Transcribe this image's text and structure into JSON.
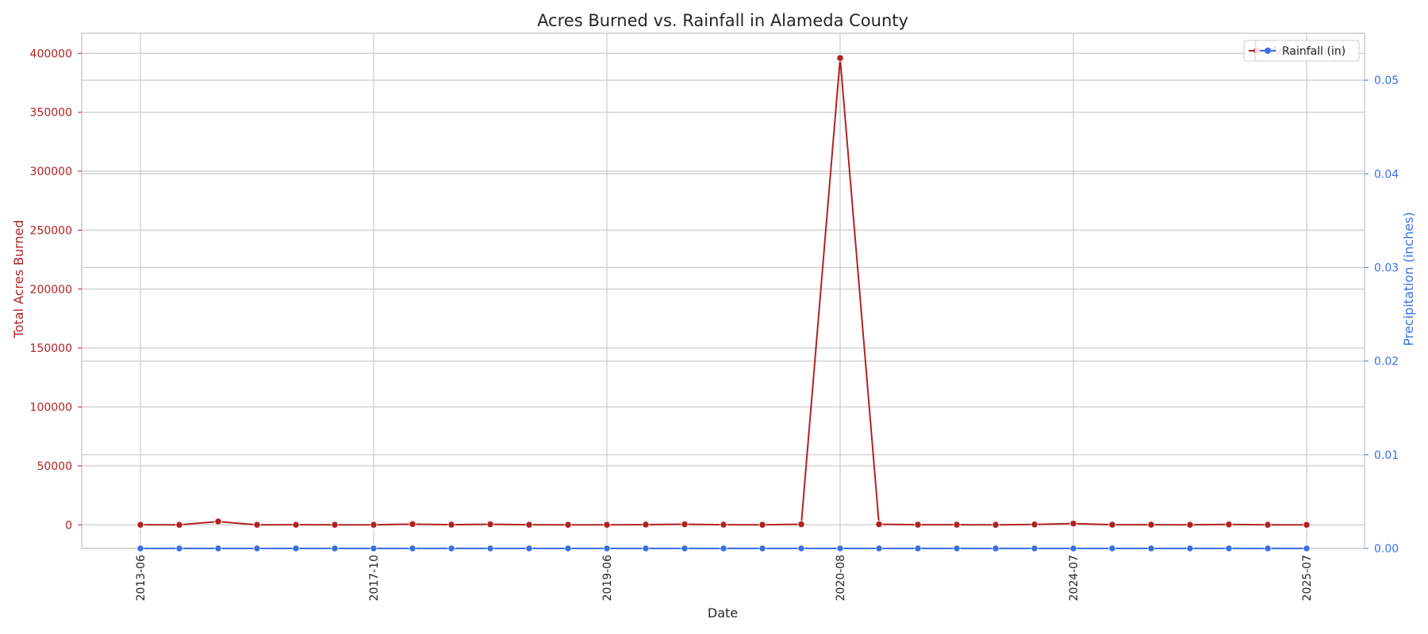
{
  "chart_data": {
    "type": "line",
    "title": "Acres Burned vs. Rainfall in Alameda County",
    "xlabel": "Date",
    "ylabel_left": "Total Acres Burned",
    "ylabel_right": "Precipitation (inches)",
    "grid": true,
    "legend_placement": "top-right",
    "x_tick_labels": [
      "2013-06",
      "2017-10",
      "2019-06",
      "2020-08",
      "2024-07",
      "2025-07"
    ],
    "x_tick_indices": [
      0,
      6,
      12,
      18,
      24,
      30
    ],
    "ylim_left": [
      -20000,
      417000
    ],
    "yticks_left": [
      0,
      50000,
      100000,
      150000,
      200000,
      250000,
      300000,
      350000,
      400000
    ],
    "ylim_right": [
      0,
      0.055
    ],
    "yticks_right": [
      0.0,
      0.01,
      0.02,
      0.03,
      0.04,
      0.05
    ],
    "series": [
      {
        "name": "Acres Burned",
        "axis": "left",
        "color": "#b22222",
        "values": [
          50,
          0,
          2800,
          20,
          80,
          10,
          30,
          600,
          100,
          500,
          50,
          20,
          40,
          200,
          500,
          100,
          40,
          500,
          396000,
          500,
          100,
          100,
          30,
          300,
          1100,
          100,
          100,
          20,
          300,
          30,
          20
        ]
      },
      {
        "name": "Rainfall (in)",
        "axis": "right",
        "color": "#3a6fe8",
        "values": [
          0,
          0,
          0,
          0,
          0,
          0,
          0,
          0,
          0,
          0,
          0,
          0,
          0,
          0,
          0,
          0,
          0,
          0,
          0,
          0,
          0,
          0,
          0,
          0,
          0,
          0,
          0,
          0,
          0,
          0,
          0
        ]
      }
    ],
    "legend": [
      "Acres Burned",
      "Rainfall (in)"
    ]
  }
}
